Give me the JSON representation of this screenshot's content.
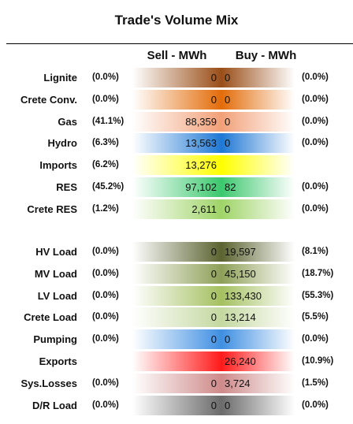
{
  "title": "Trade's Volume Mix",
  "headers": {
    "sell": "Sell - MWh",
    "buy": "Buy - MWh"
  },
  "chart_data": {
    "type": "table",
    "title": "Trade's Volume Mix",
    "columns": [
      "Sell - MWh",
      "Buy - MWh"
    ],
    "groups": [
      {
        "rows": [
          {
            "label": "Lignite",
            "sell_pct": "(0.0%)",
            "sell": "0",
            "buy": "0",
            "buy_pct": "(0.0%)",
            "color": "#9a4e18"
          },
          {
            "label": "Crete Conv.",
            "sell_pct": "(0.0%)",
            "sell": "0",
            "buy": "0",
            "buy_pct": "(0.0%)",
            "color": "#e36c09"
          },
          {
            "label": "Gas",
            "sell_pct": "(41.1%)",
            "sell": "88,359",
            "buy": "0",
            "buy_pct": "(0.0%)",
            "color": "#f2a078"
          },
          {
            "label": "Hydro",
            "sell_pct": "(6.3%)",
            "sell": "13,563",
            "buy": "0",
            "buy_pct": "(0.0%)",
            "color": "#1f78d4"
          },
          {
            "label": "Imports",
            "sell_pct": "(6.2%)",
            "sell": "13,276",
            "buy": "",
            "buy_pct": "",
            "color": "#ffff00"
          },
          {
            "label": "RES",
            "sell_pct": "(45.2%)",
            "sell": "97,102",
            "buy": "82",
            "buy_pct": "(0.0%)",
            "color": "#3cc86e"
          },
          {
            "label": "Crete RES",
            "sell_pct": "(1.2%)",
            "sell": "2,611",
            "buy": "0",
            "buy_pct": "(0.0%)",
            "color": "#9fd468"
          }
        ]
      },
      {
        "rows": [
          {
            "label": "HV Load",
            "sell_pct": "(0.0%)",
            "sell": "0",
            "buy": "19,597",
            "buy_pct": "(8.1%)",
            "color": "#5b6330"
          },
          {
            "label": "MV Load",
            "sell_pct": "(0.0%)",
            "sell": "0",
            "buy": "45,150",
            "buy_pct": "(18.7%)",
            "color": "#8ea058"
          },
          {
            "label": "LV Load",
            "sell_pct": "(0.0%)",
            "sell": "0",
            "buy": "133,430",
            "buy_pct": "(55.3%)",
            "color": "#a4c060"
          },
          {
            "label": "Crete Load",
            "sell_pct": "(0.0%)",
            "sell": "0",
            "buy": "13,214",
            "buy_pct": "(5.5%)",
            "color": "#c4d8a0"
          },
          {
            "label": "Pumping",
            "sell_pct": "(0.0%)",
            "sell": "0",
            "buy": "0",
            "buy_pct": "(0.0%)",
            "color": "#3f8fe2"
          },
          {
            "label": "Exports",
            "sell_pct": "",
            "sell": "",
            "buy": "26,240",
            "buy_pct": "(10.9%)",
            "color": "#ff1a1a"
          },
          {
            "label": "Sys.Losses",
            "sell_pct": "(0.0%)",
            "sell": "0",
            "buy": "3,724",
            "buy_pct": "(1.5%)",
            "color": "#cf8a8a"
          },
          {
            "label": "D/R Load",
            "sell_pct": "(0.0%)",
            "sell": "0",
            "buy": "0",
            "buy_pct": "(0.0%)",
            "color": "#6b6b6b"
          }
        ]
      }
    ]
  }
}
